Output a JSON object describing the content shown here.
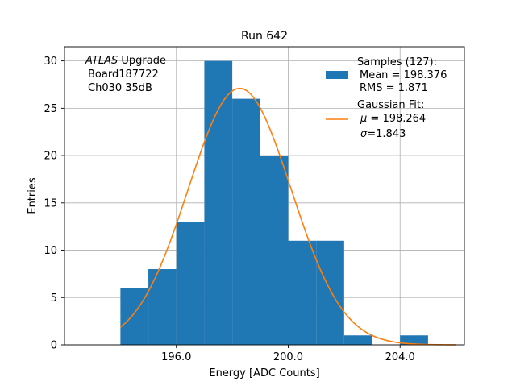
{
  "chart_data": {
    "type": "bar",
    "title": "Run 642",
    "xlabel": "Energy [ADC Counts]",
    "ylabel": "Entries",
    "xlim": [
      192.0,
      206.3
    ],
    "ylim": [
      0,
      31.5
    ],
    "grid": true,
    "x_ticks": [
      196.0,
      200.0,
      204.0
    ],
    "x_tick_labels": [
      "196.0",
      "200.0",
      "204.0"
    ],
    "y_ticks": [
      0,
      5,
      10,
      15,
      20,
      25,
      30
    ],
    "y_tick_labels": [
      "0",
      "5",
      "10",
      "15",
      "20",
      "25",
      "30"
    ],
    "bins": [
      {
        "left": 194.0,
        "right": 195.0,
        "count": 6
      },
      {
        "left": 195.0,
        "right": 196.0,
        "count": 8
      },
      {
        "left": 196.0,
        "right": 197.0,
        "count": 13
      },
      {
        "left": 197.0,
        "right": 198.0,
        "count": 30
      },
      {
        "left": 198.0,
        "right": 199.0,
        "count": 26
      },
      {
        "left": 199.0,
        "right": 200.0,
        "count": 20
      },
      {
        "left": 200.0,
        "right": 201.0,
        "count": 11
      },
      {
        "left": 201.0,
        "right": 202.0,
        "count": 11
      },
      {
        "left": 202.0,
        "right": 203.0,
        "count": 1
      },
      {
        "left": 203.0,
        "right": 204.0,
        "count": 0
      },
      {
        "left": 204.0,
        "right": 205.0,
        "count": 1
      }
    ],
    "fit": {
      "mu": 198.264,
      "sigma": 1.843,
      "peak": 27.1,
      "x_range": [
        194.0,
        206.0
      ]
    },
    "annotation": {
      "experiment": "ATLAS",
      "experiment_suffix": " Upgrade",
      "board": "Board187722",
      "channel": "Ch030 35dB"
    },
    "legend": {
      "placement": "upper right",
      "samples_label": "Samples (127):",
      "samples_mean": "Mean = 198.376",
      "samples_rms": "RMS = 1.871",
      "fit_label": "Gaussian Fit:",
      "fit_mu_symbol": "μ",
      "fit_mu_value": " = 198.264",
      "fit_sigma_symbol": "σ",
      "fit_sigma_value": "=1.843"
    },
    "colors": {
      "bars": "#1f77b4",
      "fit_line": "#ff7f0e",
      "grid": "#b0b0b0",
      "axes": "#000000"
    }
  }
}
